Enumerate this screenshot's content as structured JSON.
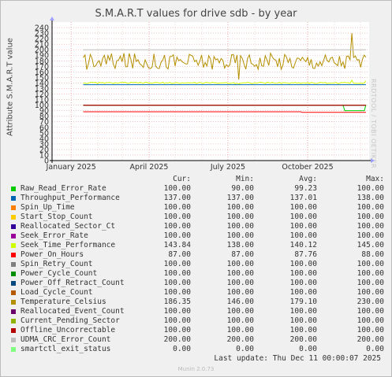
{
  "title": "S.M.A.R.T values for drive sdb - by year",
  "side_text": "RRDTOOL / TOBI OETIKER",
  "footer": {
    "updated": "Last update: Thu Dec 11 00:00:07 2025",
    "munin": "Munin 2.0.73"
  },
  "table_header": {
    "cur": "Cur:",
    "min": "Min:",
    "avg": "Avg:",
    "max": "Max:"
  },
  "chart_data": {
    "type": "line",
    "ylabel": "Attribute S.M.A.R.T value",
    "ylim": [
      0,
      250
    ],
    "yticks": [
      0,
      10,
      20,
      30,
      40,
      50,
      60,
      70,
      80,
      90,
      100,
      110,
      120,
      130,
      140,
      150,
      160,
      170,
      180,
      190,
      200,
      210,
      220,
      230,
      240
    ],
    "xlim": [
      "2024-12-10",
      "2025-12-11"
    ],
    "xticks": [
      {
        "label": "January 2025",
        "date": "2025-01-01"
      },
      {
        "label": "April 2025",
        "date": "2025-04-01"
      },
      {
        "label": "July 2025",
        "date": "2025-07-01"
      },
      {
        "label": "October 2025",
        "date": "2025-10-01"
      }
    ],
    "data_start": "2025-01-15",
    "grid": true,
    "series": [
      {
        "name": "Raw_Read_Error_Rate",
        "color": "#00cc00",
        "cur": "100.00",
        "min": "90.00",
        "avg": "99.23",
        "max": "100.00"
      },
      {
        "name": "Throughput_Performance",
        "color": "#0066b3",
        "cur": "137.00",
        "min": "137.00",
        "avg": "137.01",
        "max": "138.00"
      },
      {
        "name": "Spin_Up_Time",
        "color": "#ff8000",
        "cur": "100.00",
        "min": "100.00",
        "avg": "100.00",
        "max": "100.00"
      },
      {
        "name": "Start_Stop_Count",
        "color": "#ffcc00",
        "cur": "100.00",
        "min": "100.00",
        "avg": "100.00",
        "max": "100.00"
      },
      {
        "name": "Reallocated_Sector_Ct",
        "color": "#330099",
        "cur": "100.00",
        "min": "100.00",
        "avg": "100.00",
        "max": "100.00"
      },
      {
        "name": "Seek_Error_Rate",
        "color": "#990099",
        "cur": "100.00",
        "min": "100.00",
        "avg": "100.00",
        "max": "100.00"
      },
      {
        "name": "Seek_Time_Performance",
        "color": "#ccff00",
        "cur": "143.84",
        "min": "138.00",
        "avg": "140.12",
        "max": "145.00"
      },
      {
        "name": "Power_On_Hours",
        "color": "#ff0000",
        "cur": "87.00",
        "min": "87.00",
        "avg": "87.76",
        "max": "88.00"
      },
      {
        "name": "Spin_Retry_Count",
        "color": "#808080",
        "cur": "100.00",
        "min": "100.00",
        "avg": "100.00",
        "max": "100.00"
      },
      {
        "name": "Power_Cycle_Count",
        "color": "#008f00",
        "cur": "100.00",
        "min": "100.00",
        "avg": "100.00",
        "max": "100.00"
      },
      {
        "name": "Power_Off_Retract_Count",
        "color": "#00487d",
        "cur": "100.00",
        "min": "100.00",
        "avg": "100.00",
        "max": "100.00"
      },
      {
        "name": "Load_Cycle_Count",
        "color": "#b35a00",
        "cur": "100.00",
        "min": "100.00",
        "avg": "100.00",
        "max": "100.00"
      },
      {
        "name": "Temperature_Celsius",
        "color": "#b38f00",
        "cur": "186.35",
        "min": "146.00",
        "avg": "179.10",
        "max": "230.00"
      },
      {
        "name": "Reallocated_Event_Count",
        "color": "#6b006b",
        "cur": "100.00",
        "min": "100.00",
        "avg": "100.00",
        "max": "100.00"
      },
      {
        "name": "Current_Pending_Sector",
        "color": "#8fb300",
        "cur": "100.00",
        "min": "100.00",
        "avg": "100.00",
        "max": "100.00"
      },
      {
        "name": "Offline_Uncorrectable",
        "color": "#b30000",
        "cur": "100.00",
        "min": "100.00",
        "avg": "100.00",
        "max": "100.00"
      },
      {
        "name": "UDMA_CRC_Error_Count",
        "color": "#bebebe",
        "cur": "200.00",
        "min": "200.00",
        "avg": "200.00",
        "max": "200.00"
      },
      {
        "name": "smartctl_exit_status",
        "color": "#80ff80",
        "cur": "0.00",
        "min": "0.00",
        "avg": "0.00",
        "max": "0.00"
      }
    ]
  }
}
